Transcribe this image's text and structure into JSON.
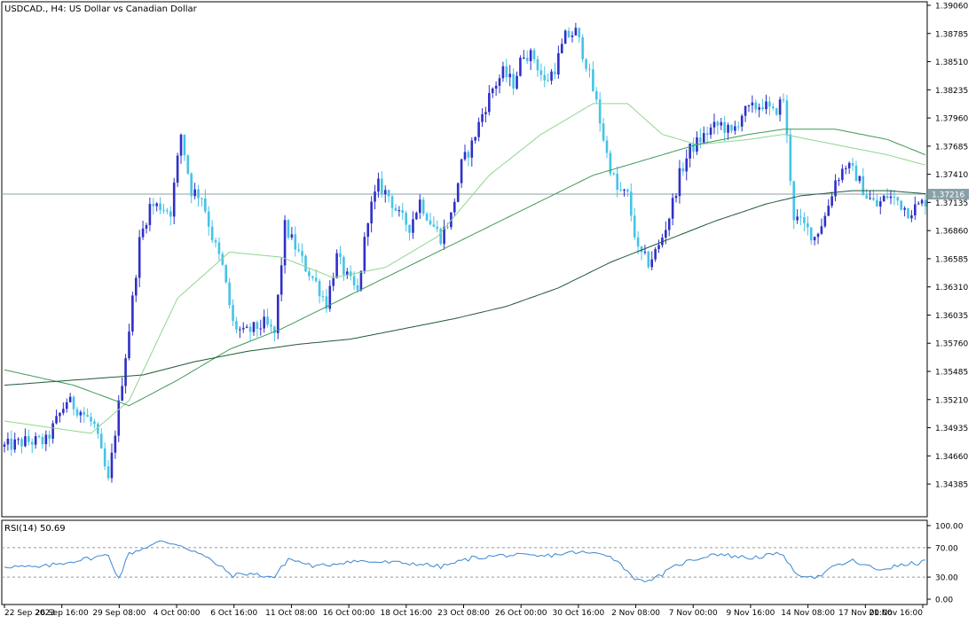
{
  "main_label": "USDCAD., H4:  US Dollar vs Canadian Dollar",
  "current_price_label": "1.37216",
  "rsi_label": "RSI(14) 50.69",
  "colors": {
    "bull": "#2f2fc8",
    "bear": "#46c3e6",
    "ma_fast": "#8fd68f",
    "ma_mid": "#3f9a5a",
    "ma_slow": "#1f5a36",
    "rsi": "#3a86d0",
    "price_line": "#8aa0a8",
    "grid": "#000000"
  },
  "chart_data": [
    {
      "type": "candlestick",
      "symbol": "USDCAD.",
      "timeframe": "H4",
      "title": "USDCAD., H4:  US Dollar vs Canadian Dollar",
      "y_ticks": [
        "1.39060",
        "1.38785",
        "1.38510",
        "1.38235",
        "1.37960",
        "1.37685",
        "1.37410",
        "1.37135",
        "1.36860",
        "1.36585",
        "1.36310",
        "1.36035",
        "1.35760",
        "1.35485",
        "1.35210",
        "1.34935",
        "1.34660",
        "1.34385"
      ],
      "ylim": [
        1.341,
        1.3906
      ],
      "last_price": 1.37216,
      "x_labels": [
        "22 Sep 2023",
        "26 Sep 16:00",
        "29 Sep 08:00",
        "4 Oct 00:00",
        "6 Oct 16:00",
        "11 Oct 08:00",
        "16 Oct 00:00",
        "18 Oct 16:00",
        "23 Oct 08:00",
        "26 Oct 00:00",
        "30 Oct 16:00",
        "2 Nov 08:00",
        "7 Nov 00:00",
        "9 Nov 16:00",
        "14 Nov 08:00",
        "17 Nov 00:00",
        "21 Nov 16:00"
      ],
      "close_keypoints": [
        [
          0,
          1.3475
        ],
        [
          6,
          1.348
        ],
        [
          12,
          1.348
        ],
        [
          18,
          1.352
        ],
        [
          22,
          1.351
        ],
        [
          26,
          1.3495
        ],
        [
          30,
          1.344
        ],
        [
          33,
          1.3515
        ],
        [
          36,
          1.359
        ],
        [
          39,
          1.3675
        ],
        [
          42,
          1.371
        ],
        [
          45,
          1.371
        ],
        [
          48,
          1.3705
        ],
        [
          51,
          1.378
        ],
        [
          54,
          1.3725
        ],
        [
          57,
          1.372
        ],
        [
          60,
          1.368
        ],
        [
          63,
          1.365
        ],
        [
          66,
          1.3595
        ],
        [
          69,
          1.3585
        ],
        [
          72,
          1.359
        ],
        [
          75,
          1.3595
        ],
        [
          78,
          1.3585
        ],
        [
          81,
          1.369
        ],
        [
          84,
          1.367
        ],
        [
          87,
          1.365
        ],
        [
          90,
          1.3635
        ],
        [
          93,
          1.3615
        ],
        [
          96,
          1.366
        ],
        [
          99,
          1.364
        ],
        [
          102,
          1.3625
        ],
        [
          105,
          1.37
        ],
        [
          108,
          1.373
        ],
        [
          111,
          1.372
        ],
        [
          114,
          1.37
        ],
        [
          117,
          1.369
        ],
        [
          120,
          1.3715
        ],
        [
          123,
          1.3695
        ],
        [
          126,
          1.368
        ],
        [
          129,
          1.37
        ],
        [
          132,
          1.375
        ],
        [
          135,
          1.377
        ],
        [
          138,
          1.38
        ],
        [
          141,
          1.3825
        ],
        [
          144,
          1.384
        ],
        [
          147,
          1.383
        ],
        [
          150,
          1.386
        ],
        [
          153,
          1.3855
        ],
        [
          156,
          1.383
        ],
        [
          159,
          1.3845
        ],
        [
          162,
          1.3875
        ],
        [
          165,
          1.388
        ],
        [
          168,
          1.385
        ],
        [
          171,
          1.381
        ],
        [
          174,
          1.376
        ],
        [
          177,
          1.3725
        ],
        [
          180,
          1.372
        ],
        [
          183,
          1.3665
        ],
        [
          186,
          1.3655
        ],
        [
          189,
          1.367
        ],
        [
          192,
          1.37
        ],
        [
          195,
          1.374
        ],
        [
          198,
          1.3765
        ],
        [
          201,
          1.3775
        ],
        [
          204,
          1.3785
        ],
        [
          207,
          1.379
        ],
        [
          210,
          1.378
        ],
        [
          213,
          1.38
        ],
        [
          216,
          1.3805
        ],
        [
          219,
          1.381
        ],
        [
          222,
          1.38
        ],
        [
          225,
          1.3815
        ],
        [
          228,
          1.37
        ],
        [
          231,
          1.369
        ],
        [
          234,
          1.368
        ],
        [
          237,
          1.37
        ],
        [
          240,
          1.3735
        ],
        [
          243,
          1.375
        ],
        [
          246,
          1.374
        ],
        [
          249,
          1.372
        ],
        [
          252,
          1.371
        ],
        [
          255,
          1.372
        ],
        [
          258,
          1.3715
        ],
        [
          261,
          1.3705
        ],
        [
          264,
          1.371
        ],
        [
          266,
          1.3715
        ]
      ],
      "moving_averages": [
        {
          "role": "fast",
          "values": [
            [
              0,
              1.35
            ],
            [
              25,
              1.3488
            ],
            [
              36,
              1.352
            ],
            [
              50,
              1.362
            ],
            [
              65,
              1.3665
            ],
            [
              80,
              1.366
            ],
            [
              95,
              1.364
            ],
            [
              110,
              1.365
            ],
            [
              125,
              1.368
            ],
            [
              140,
              1.374
            ],
            [
              155,
              1.378
            ],
            [
              170,
              1.381
            ],
            [
              180,
              1.381
            ],
            [
              190,
              1.378
            ],
            [
              200,
              1.377
            ],
            [
              215,
              1.3775
            ],
            [
              225,
              1.378
            ],
            [
              240,
              1.377
            ],
            [
              255,
              1.376
            ],
            [
              266,
              1.375
            ]
          ]
        },
        {
          "role": "mid",
          "values": [
            [
              0,
              1.355
            ],
            [
              20,
              1.3535
            ],
            [
              36,
              1.3515
            ],
            [
              50,
              1.354
            ],
            [
              65,
              1.357
            ],
            [
              80,
              1.359
            ],
            [
              95,
              1.3615
            ],
            [
              110,
              1.364
            ],
            [
              125,
              1.3665
            ],
            [
              140,
              1.369
            ],
            [
              155,
              1.3715
            ],
            [
              170,
              1.374
            ],
            [
              185,
              1.3755
            ],
            [
              200,
              1.377
            ],
            [
              215,
              1.378
            ],
            [
              225,
              1.3785
            ],
            [
              240,
              1.3785
            ],
            [
              255,
              1.3775
            ],
            [
              266,
              1.376
            ]
          ]
        },
        {
          "role": "slow",
          "values": [
            [
              0,
              1.3535
            ],
            [
              20,
              1.354
            ],
            [
              40,
              1.3545
            ],
            [
              55,
              1.3558
            ],
            [
              70,
              1.3568
            ],
            [
              85,
              1.3575
            ],
            [
              100,
              1.358
            ],
            [
              115,
              1.359
            ],
            [
              130,
              1.36
            ],
            [
              145,
              1.3612
            ],
            [
              160,
              1.363
            ],
            [
              175,
              1.3655
            ],
            [
              190,
              1.3675
            ],
            [
              205,
              1.3695
            ],
            [
              220,
              1.3712
            ],
            [
              230,
              1.372
            ],
            [
              245,
              1.3725
            ],
            [
              255,
              1.3725
            ],
            [
              266,
              1.3722
            ]
          ]
        }
      ]
    },
    {
      "type": "line",
      "title": "RSI(14) 50.69",
      "y_ticks": [
        "100.00",
        "70.00",
        "30.00",
        "0.00"
      ],
      "ylim": [
        0,
        100
      ],
      "levels": [
        70,
        30
      ],
      "last_value": 50.69,
      "values": [
        [
          0,
          45
        ],
        [
          10,
          43
        ],
        [
          20,
          52
        ],
        [
          30,
          60
        ],
        [
          33,
          28
        ],
        [
          36,
          62
        ],
        [
          45,
          78
        ],
        [
          50,
          75
        ],
        [
          55,
          65
        ],
        [
          60,
          52
        ],
        [
          66,
          32
        ],
        [
          70,
          35
        ],
        [
          78,
          30
        ],
        [
          82,
          55
        ],
        [
          90,
          44
        ],
        [
          100,
          52
        ],
        [
          110,
          50
        ],
        [
          120,
          48
        ],
        [
          126,
          44
        ],
        [
          135,
          56
        ],
        [
          145,
          60
        ],
        [
          155,
          58
        ],
        [
          165,
          64
        ],
        [
          175,
          60
        ],
        [
          183,
          25
        ],
        [
          188,
          28
        ],
        [
          195,
          48
        ],
        [
          205,
          62
        ],
        [
          215,
          56
        ],
        [
          225,
          62
        ],
        [
          228,
          35
        ],
        [
          235,
          30
        ],
        [
          240,
          45
        ],
        [
          245,
          52
        ],
        [
          252,
          40
        ],
        [
          258,
          45
        ],
        [
          266,
          51
        ]
      ]
    }
  ]
}
